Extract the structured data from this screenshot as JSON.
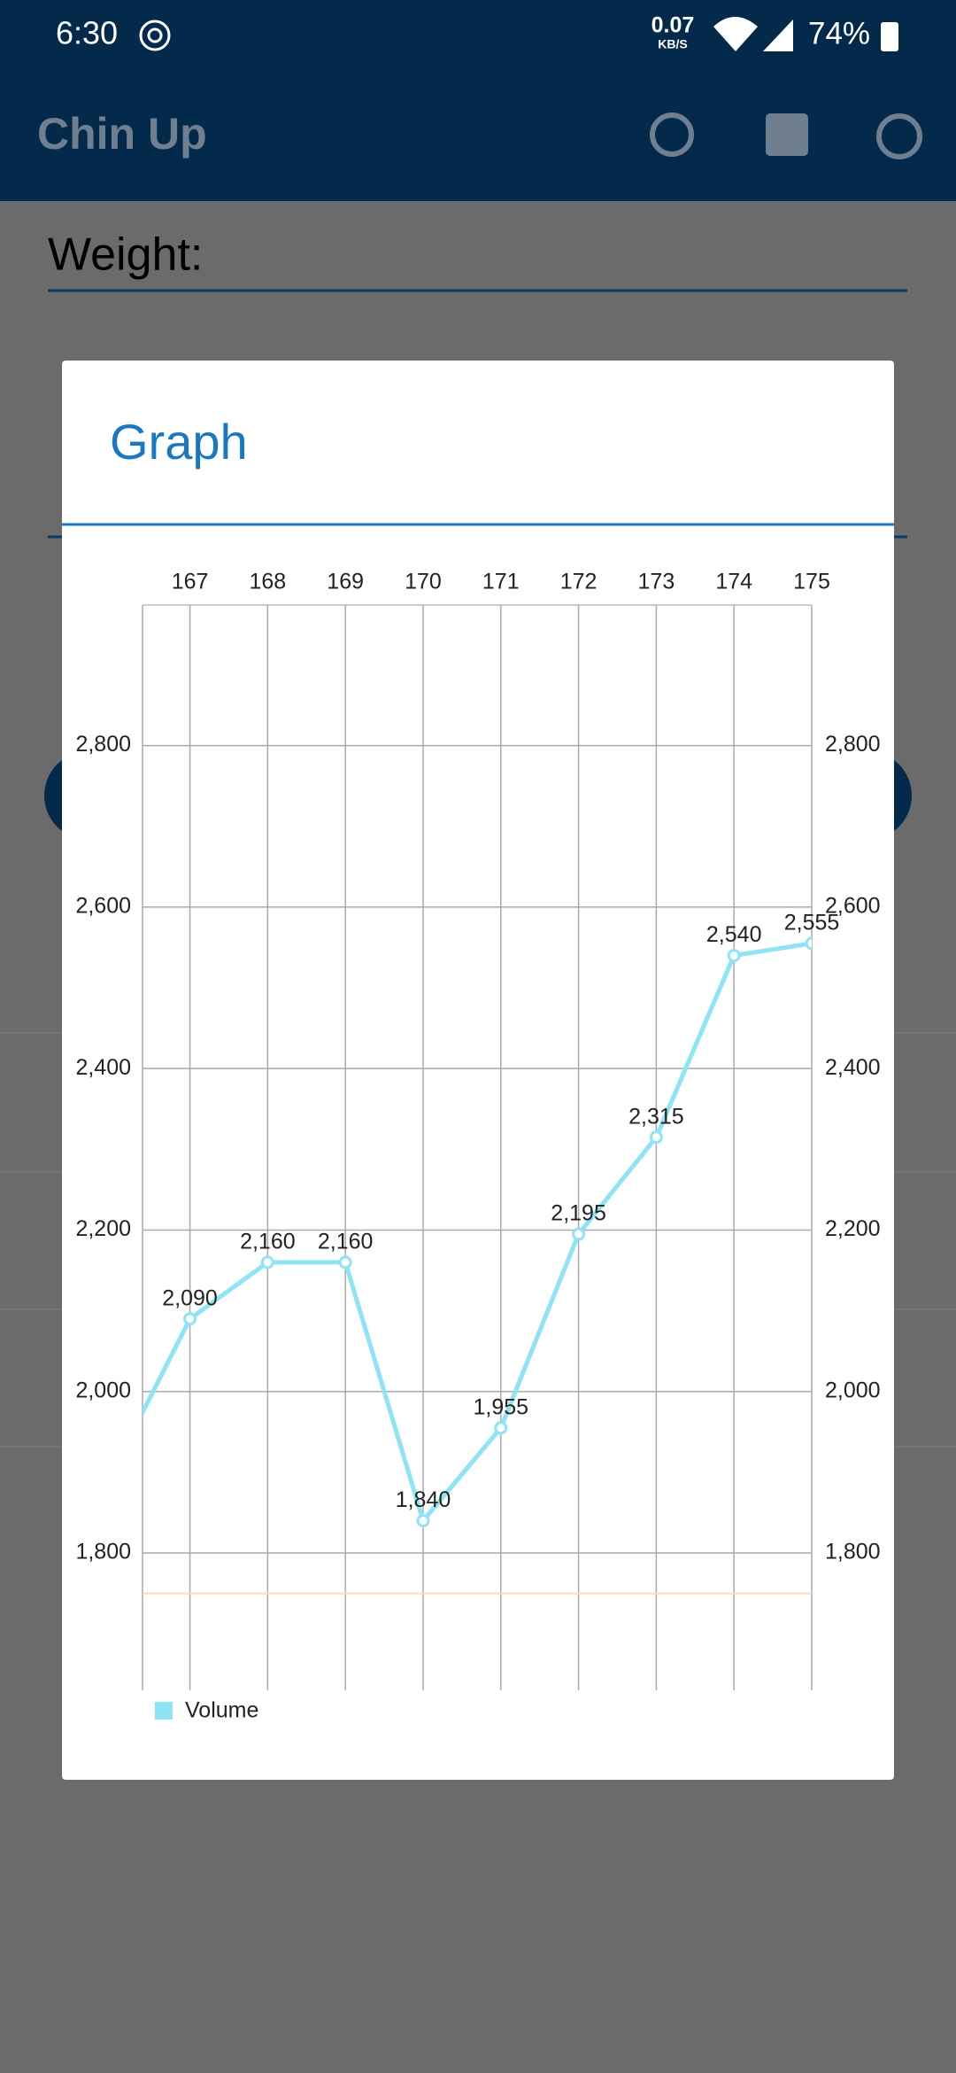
{
  "status_bar": {
    "time": "6:30",
    "speed": "0.07",
    "speed_unit": "KB/S",
    "battery": "74%"
  },
  "app_bar": {
    "title": "Chin Up"
  },
  "form": {
    "weight_label": "Weight:"
  },
  "dialog": {
    "title": "Graph"
  },
  "chart_data": {
    "type": "line",
    "x": [
      166,
      167,
      168,
      169,
      170,
      171,
      172,
      173,
      174,
      175
    ],
    "series": [
      {
        "name": "Volume",
        "color": "#8ee3f5",
        "values": [
          1900,
          2090,
          2160,
          2160,
          1840,
          1955,
          2195,
          2315,
          2540,
          2555
        ],
        "value_labels": [
          null,
          "2,090",
          "2,160",
          "2,160",
          "1,840",
          "1,955",
          "2,195",
          "2,315",
          "2,540",
          "2,555"
        ]
      }
    ],
    "xlim": [
      166.39,
      175
    ],
    "xticks": [
      167,
      168,
      169,
      170,
      171,
      172,
      173,
      174,
      175
    ],
    "ylim": [
      1630,
      2974
    ],
    "yticks": [
      {
        "value": 1800,
        "label": "1,800"
      },
      {
        "value": 2000,
        "label": "2,000"
      },
      {
        "value": 2200,
        "label": "2,200"
      },
      {
        "value": 2400,
        "label": "2,400"
      },
      {
        "value": 2600,
        "label": "2,600"
      },
      {
        "value": 2800,
        "label": "2,800"
      }
    ],
    "limit_line": {
      "value": 1750,
      "color": "#f5dcc0"
    },
    "grid": true
  }
}
